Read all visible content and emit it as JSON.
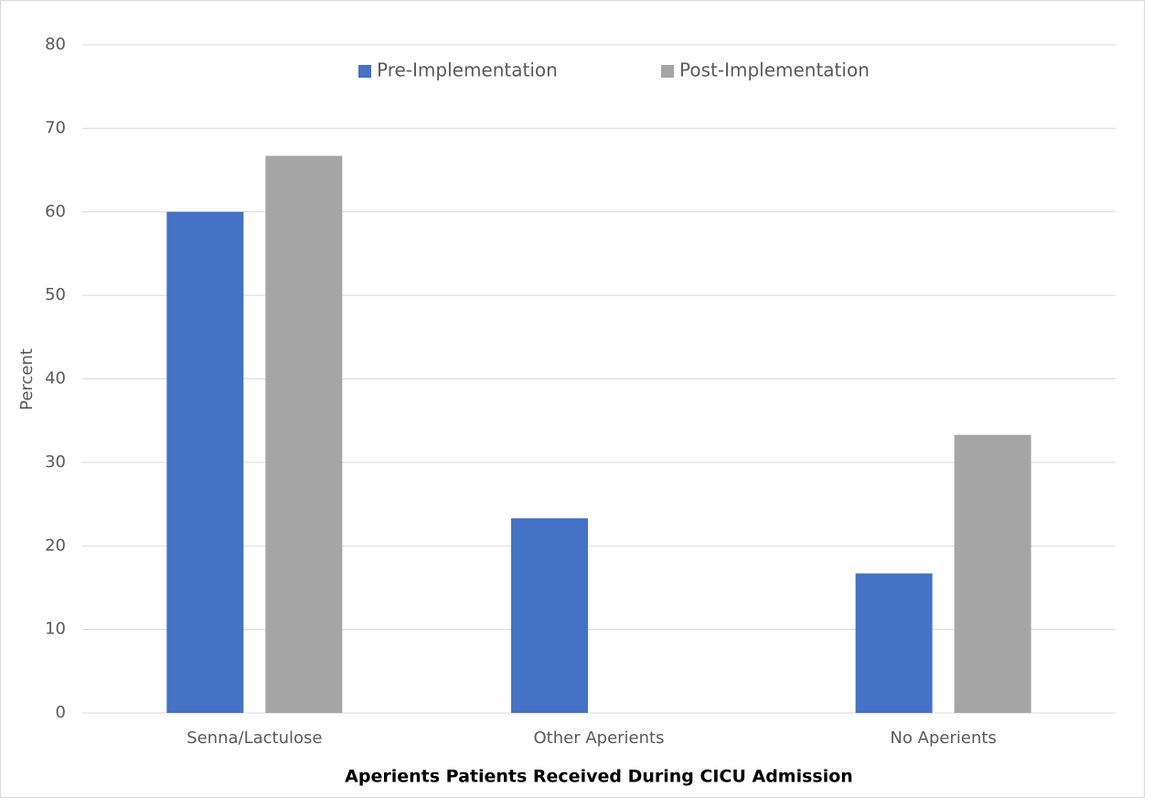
{
  "chart_data": {
    "type": "bar",
    "categories": [
      "Senna/Lactulose",
      "Other Aperients",
      "No Aperients"
    ],
    "series": [
      {
        "name": "Pre-Implementation",
        "color": "#4472c4",
        "values": [
          60,
          23.3,
          16.7
        ]
      },
      {
        "name": "Post-Implementation",
        "color": "#a5a5a5",
        "values": [
          66.7,
          0,
          33.3
        ]
      }
    ],
    "ylim": [
      0,
      80
    ],
    "yticks": [
      0,
      10,
      20,
      30,
      40,
      50,
      60,
      70,
      80
    ],
    "ylabel": "Percent",
    "xlabel": "Aperients Patients Received During CICU Admission",
    "grid": true,
    "legend": "top"
  }
}
